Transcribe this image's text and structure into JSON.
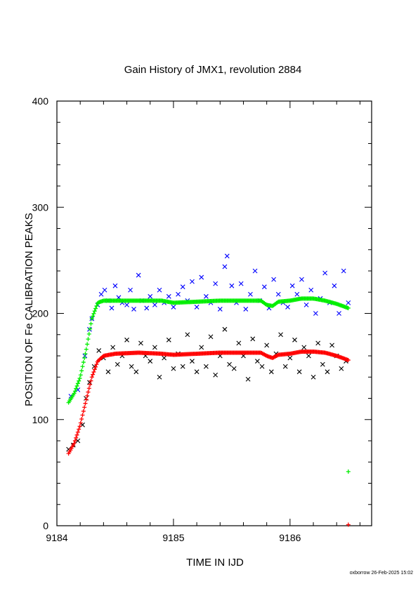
{
  "chart_data": {
    "type": "scatter",
    "title": "Gain History of JMX1, revolution 2884",
    "xlabel": "TIME IN IJD",
    "ylabel": "POSITION OF Fe CALIBRATION PEAKS",
    "xlim": [
      9184.0,
      9186.7
    ],
    "ylim": [
      0,
      400
    ],
    "x_ticks": [
      "9184",
      "9185",
      "9186"
    ],
    "y_ticks": [
      "0",
      "100",
      "200",
      "300",
      "400"
    ],
    "grid": false,
    "credit": "oxborrow 26-Feb-2025 15:02",
    "series": [
      {
        "marker": "x",
        "color": "#0000ff",
        "x": [
          9184.12,
          9184.18,
          9184.24,
          9184.28,
          9184.3,
          9184.35,
          9184.38,
          9184.41,
          9184.44,
          9184.47,
          9184.5,
          9184.53,
          9184.56,
          9184.6,
          9184.63,
          9184.66,
          9184.7,
          9184.73,
          9184.77,
          9184.8,
          9184.84,
          9184.88,
          9184.92,
          9184.96,
          9185.0,
          9185.04,
          9185.08,
          9185.12,
          9185.16,
          9185.2,
          9185.24,
          9185.28,
          9185.32,
          9185.36,
          9185.4,
          9185.44,
          9185.46,
          9185.5,
          9185.54,
          9185.58,
          9185.62,
          9185.66,
          9185.7,
          9185.74,
          9185.78,
          9185.82,
          9185.86,
          9185.9,
          9185.94,
          9185.98,
          9186.02,
          9186.06,
          9186.1,
          9186.14,
          9186.18,
          9186.22,
          9186.26,
          9186.3,
          9186.34,
          9186.38,
          9186.42,
          9186.46,
          9186.5
        ],
        "y": [
          122,
          128,
          160,
          185,
          195,
          208,
          218,
          222,
          212,
          205,
          226,
          215,
          210,
          208,
          222,
          204,
          236,
          212,
          205,
          216,
          208,
          222,
          210,
          216,
          206,
          218,
          225,
          212,
          230,
          206,
          234,
          216,
          210,
          228,
          204,
          244,
          254,
          226,
          210,
          228,
          204,
          218,
          240,
          212,
          225,
          205,
          232,
          218,
          210,
          206,
          226,
          218,
          232,
          208,
          222,
          200,
          214,
          238,
          210,
          226,
          200,
          240,
          210
        ]
      },
      {
        "marker": "x",
        "color": "#000000",
        "x": [
          9184.1,
          9184.14,
          9184.18,
          9184.22,
          9184.25,
          9184.28,
          9184.32,
          9184.36,
          9184.4,
          9184.44,
          9184.48,
          9184.52,
          9184.56,
          9184.6,
          9184.64,
          9184.68,
          9184.72,
          9184.76,
          9184.8,
          9184.84,
          9184.88,
          9184.92,
          9184.96,
          9185.0,
          9185.04,
          9185.08,
          9185.12,
          9185.16,
          9185.2,
          9185.24,
          9185.28,
          9185.32,
          9185.36,
          9185.4,
          9185.44,
          9185.48,
          9185.52,
          9185.56,
          9185.6,
          9185.64,
          9185.68,
          9185.72,
          9185.76,
          9185.8,
          9185.84,
          9185.88,
          9185.92,
          9185.96,
          9186.0,
          9186.04,
          9186.08,
          9186.12,
          9186.16,
          9186.2,
          9186.24,
          9186.28,
          9186.32,
          9186.36,
          9186.4,
          9186.44,
          9186.48
        ],
        "y": [
          72,
          76,
          80,
          95,
          120,
          135,
          150,
          165,
          158,
          145,
          168,
          152,
          160,
          175,
          150,
          145,
          172,
          160,
          155,
          168,
          140,
          158,
          175,
          148,
          162,
          150,
          180,
          155,
          145,
          168,
          150,
          178,
          142,
          160,
          185,
          152,
          148,
          172,
          160,
          138,
          176,
          155,
          150,
          170,
          145,
          162,
          180,
          150,
          158,
          175,
          145,
          168,
          160,
          140,
          172,
          152,
          145,
          170,
          160,
          148,
          155
        ]
      },
      {
        "marker": "+",
        "color": "#00ee00",
        "x": [
          9184.1,
          9184.15,
          9184.2,
          9184.25,
          9184.3,
          9184.35,
          9184.4,
          9184.5,
          9184.7,
          9184.9,
          9185.0,
          9185.2,
          9185.4,
          9185.6,
          9185.75,
          9185.8,
          9185.85,
          9185.9,
          9186.0,
          9186.1,
          9186.2,
          9186.3,
          9186.4,
          9186.5
        ],
        "y": [
          116,
          125,
          140,
          165,
          195,
          210,
          212,
          212,
          212,
          212,
          210,
          211,
          212,
          212,
          212,
          208,
          207,
          211,
          212,
          214,
          214,
          212,
          209,
          205
        ]
      },
      {
        "marker": "+",
        "color": "#ff0000",
        "x": [
          9184.1,
          9184.15,
          9184.2,
          9184.25,
          9184.3,
          9184.35,
          9184.4,
          9184.5,
          9184.7,
          9184.9,
          9185.0,
          9185.2,
          9185.4,
          9185.6,
          9185.75,
          9185.8,
          9185.85,
          9185.9,
          9186.0,
          9186.1,
          9186.2,
          9186.3,
          9186.4,
          9186.5
        ],
        "y": [
          68,
          78,
          95,
          118,
          140,
          155,
          160,
          162,
          163,
          162,
          161,
          162,
          163,
          163,
          163,
          160,
          158,
          161,
          162,
          164,
          164,
          163,
          160,
          156
        ]
      }
    ],
    "outliers": [
      {
        "x": 9186.5,
        "y": 51,
        "marker": "+",
        "color": "#00ee00"
      },
      {
        "x": 9186.5,
        "y": 1,
        "marker": "+",
        "color": "#ff0000"
      }
    ]
  }
}
